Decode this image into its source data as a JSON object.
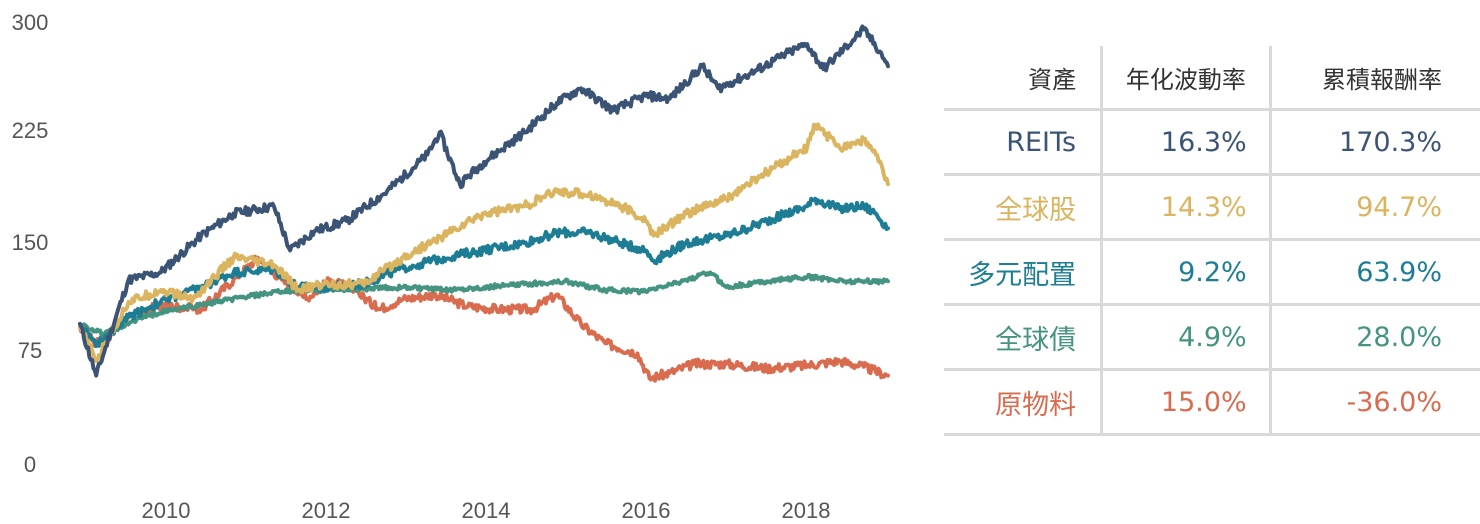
{
  "chart_data": {
    "type": "line",
    "x_range": [
      2009,
      2019
    ],
    "xticks": [
      "2010",
      "2012",
      "2014",
      "2016",
      "2018"
    ],
    "yticks": [
      "0",
      "75",
      "150",
      "225",
      "300"
    ],
    "ylim": [
      0,
      300
    ],
    "grid": false,
    "series": [
      {
        "name": "REITs",
        "color": "#3b5475",
        "points": [
          [
            2009.0,
            95
          ],
          [
            2009.2,
            60
          ],
          [
            2009.6,
            125
          ],
          [
            2010.0,
            130
          ],
          [
            2010.5,
            155
          ],
          [
            2010.9,
            170
          ],
          [
            2011.4,
            175
          ],
          [
            2011.6,
            145
          ],
          [
            2011.9,
            158
          ],
          [
            2012.3,
            165
          ],
          [
            2012.8,
            185
          ],
          [
            2013.3,
            210
          ],
          [
            2013.45,
            225
          ],
          [
            2013.7,
            190
          ],
          [
            2014.0,
            205
          ],
          [
            2014.5,
            225
          ],
          [
            2014.9,
            245
          ],
          [
            2015.2,
            255
          ],
          [
            2015.6,
            240
          ],
          [
            2016.0,
            250
          ],
          [
            2016.3,
            248
          ],
          [
            2016.7,
            270
          ],
          [
            2016.9,
            255
          ],
          [
            2017.3,
            265
          ],
          [
            2017.8,
            280
          ],
          [
            2018.0,
            285
          ],
          [
            2018.2,
            268
          ],
          [
            2018.7,
            295
          ],
          [
            2018.9,
            280
          ],
          [
            2019.0,
            270
          ]
        ]
      },
      {
        "name": "全球股",
        "color": "#dbb45f",
        "points": [
          [
            2009.0,
            93
          ],
          [
            2009.2,
            70
          ],
          [
            2009.6,
            110
          ],
          [
            2010.0,
            118
          ],
          [
            2010.4,
            112
          ],
          [
            2010.9,
            140
          ],
          [
            2011.4,
            135
          ],
          [
            2011.7,
            118
          ],
          [
            2012.0,
            122
          ],
          [
            2012.5,
            122
          ],
          [
            2013.0,
            140
          ],
          [
            2013.5,
            155
          ],
          [
            2014.0,
            170
          ],
          [
            2014.5,
            175
          ],
          [
            2014.9,
            185
          ],
          [
            2015.3,
            183
          ],
          [
            2015.7,
            175
          ],
          [
            2016.0,
            165
          ],
          [
            2016.1,
            155
          ],
          [
            2016.5,
            170
          ],
          [
            2017.0,
            180
          ],
          [
            2017.5,
            198
          ],
          [
            2018.0,
            215
          ],
          [
            2018.1,
            230
          ],
          [
            2018.4,
            215
          ],
          [
            2018.7,
            220
          ],
          [
            2018.85,
            210
          ],
          [
            2019.0,
            190
          ]
        ]
      },
      {
        "name": "多元配置",
        "color": "#1d7d94",
        "points": [
          [
            2009.0,
            95
          ],
          [
            2009.2,
            80
          ],
          [
            2009.6,
            100
          ],
          [
            2010.0,
            110
          ],
          [
            2010.5,
            120
          ],
          [
            2010.9,
            130
          ],
          [
            2011.4,
            132
          ],
          [
            2011.7,
            120
          ],
          [
            2012.0,
            120
          ],
          [
            2012.5,
            122
          ],
          [
            2013.0,
            133
          ],
          [
            2013.5,
            140
          ],
          [
            2014.0,
            145
          ],
          [
            2014.5,
            150
          ],
          [
            2014.9,
            157
          ],
          [
            2015.3,
            157
          ],
          [
            2015.7,
            150
          ],
          [
            2016.0,
            145
          ],
          [
            2016.1,
            138
          ],
          [
            2016.5,
            150
          ],
          [
            2017.0,
            155
          ],
          [
            2017.5,
            165
          ],
          [
            2018.0,
            175
          ],
          [
            2018.1,
            180
          ],
          [
            2018.4,
            173
          ],
          [
            2018.7,
            175
          ],
          [
            2018.85,
            170
          ],
          [
            2019.0,
            160
          ]
        ]
      },
      {
        "name": "全球債",
        "color": "#459481",
        "points": [
          [
            2009.0,
            95
          ],
          [
            2009.3,
            88
          ],
          [
            2009.7,
            98
          ],
          [
            2010.0,
            103
          ],
          [
            2010.5,
            108
          ],
          [
            2011.0,
            113
          ],
          [
            2011.5,
            117
          ],
          [
            2012.0,
            118
          ],
          [
            2012.5,
            119
          ],
          [
            2013.0,
            120
          ],
          [
            2013.5,
            118
          ],
          [
            2014.0,
            120
          ],
          [
            2014.5,
            122
          ],
          [
            2015.0,
            124
          ],
          [
            2015.5,
            118
          ],
          [
            2016.0,
            117
          ],
          [
            2016.5,
            125
          ],
          [
            2016.8,
            130
          ],
          [
            2017.0,
            120
          ],
          [
            2017.5,
            124
          ],
          [
            2018.0,
            127
          ],
          [
            2018.5,
            124
          ],
          [
            2019.0,
            124
          ]
        ]
      },
      {
        "name": "原物料",
        "color": "#d96c4f",
        "points": [
          [
            2009.0,
            93
          ],
          [
            2009.2,
            82
          ],
          [
            2009.6,
            100
          ],
          [
            2010.0,
            108
          ],
          [
            2010.5,
            105
          ],
          [
            2010.9,
            125
          ],
          [
            2011.2,
            140
          ],
          [
            2011.5,
            125
          ],
          [
            2011.8,
            112
          ],
          [
            2012.1,
            125
          ],
          [
            2012.4,
            118
          ],
          [
            2012.7,
            105
          ],
          [
            2013.0,
            112
          ],
          [
            2013.4,
            115
          ],
          [
            2013.8,
            107
          ],
          [
            2014.2,
            105
          ],
          [
            2014.6,
            105
          ],
          [
            2014.9,
            115
          ],
          [
            2015.2,
            95
          ],
          [
            2015.5,
            82
          ],
          [
            2015.9,
            75
          ],
          [
            2016.05,
            58
          ],
          [
            2016.3,
            62
          ],
          [
            2016.6,
            68
          ],
          [
            2017.0,
            68
          ],
          [
            2017.5,
            65
          ],
          [
            2018.0,
            67
          ],
          [
            2018.4,
            70
          ],
          [
            2018.7,
            66
          ],
          [
            2019.0,
            60
          ]
        ]
      }
    ]
  },
  "table": {
    "headers": [
      "資產",
      "年化波動率",
      "累積報酬率"
    ],
    "rows": [
      {
        "asset": "REITs",
        "volatility": "16.3%",
        "return": "170.3%",
        "color": "#3b5475"
      },
      {
        "asset": "全球股",
        "volatility": "14.3%",
        "return": "94.7%",
        "color": "#dbb45f"
      },
      {
        "asset": "多元配置",
        "volatility": "9.2%",
        "return": "63.9%",
        "color": "#1d7d94"
      },
      {
        "asset": "全球債",
        "volatility": "4.9%",
        "return": "28.0%",
        "color": "#459481"
      },
      {
        "asset": "原物料",
        "volatility": "15.0%",
        "return": "-36.0%",
        "color": "#d96c4f"
      }
    ]
  }
}
